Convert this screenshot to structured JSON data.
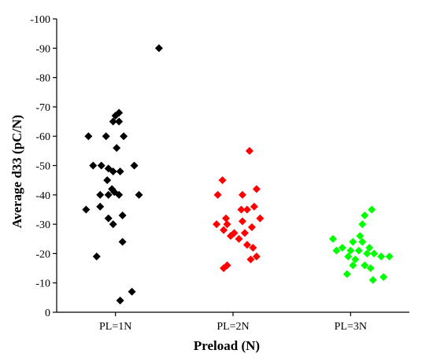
{
  "chart_data": {
    "type": "scatter",
    "xlabel": "Preload (N)",
    "ylabel": "Average d33 (pC/N)",
    "categories": [
      "PL=1N",
      "PL=2N",
      "PL=3N"
    ],
    "ylim": [
      0,
      -100
    ],
    "yticks": [
      0,
      -10,
      -20,
      -30,
      -40,
      -50,
      -60,
      -70,
      -80,
      -90,
      -100
    ],
    "ytick_labels": [
      "0",
      "-10",
      "-20",
      "-30",
      "-40",
      "-50",
      "-60",
      "-70",
      "-80",
      "-90",
      "-100"
    ],
    "grid": false,
    "marker": "diamond",
    "series": [
      {
        "category": "PL=1N",
        "color": "#000000",
        "points": [
          {
            "x": 1.37,
            "y": -90
          },
          {
            "x": 1.03,
            "y": -68
          },
          {
            "x": 1.0,
            "y": -67
          },
          {
            "x": 0.98,
            "y": -65
          },
          {
            "x": 1.03,
            "y": -65
          },
          {
            "x": 0.77,
            "y": -60
          },
          {
            "x": 0.92,
            "y": -60
          },
          {
            "x": 1.07,
            "y": -60
          },
          {
            "x": 1.01,
            "y": -56
          },
          {
            "x": 0.81,
            "y": -50
          },
          {
            "x": 0.88,
            "y": -50
          },
          {
            "x": 0.94,
            "y": -49
          },
          {
            "x": 1.16,
            "y": -50
          },
          {
            "x": 0.98,
            "y": -48
          },
          {
            "x": 1.04,
            "y": -48
          },
          {
            "x": 0.93,
            "y": -45
          },
          {
            "x": 0.97,
            "y": -42
          },
          {
            "x": 0.87,
            "y": -40
          },
          {
            "x": 0.94,
            "y": -40
          },
          {
            "x": 0.99,
            "y": -41
          },
          {
            "x": 1.03,
            "y": -40
          },
          {
            "x": 1.2,
            "y": -40
          },
          {
            "x": 0.75,
            "y": -35
          },
          {
            "x": 0.87,
            "y": -36
          },
          {
            "x": 1.06,
            "y": -33
          },
          {
            "x": 0.94,
            "y": -32
          },
          {
            "x": 0.98,
            "y": -30
          },
          {
            "x": 1.06,
            "y": -24
          },
          {
            "x": 0.84,
            "y": -19
          },
          {
            "x": 1.14,
            "y": -7
          },
          {
            "x": 1.04,
            "y": -4
          }
        ]
      },
      {
        "category": "PL=2N",
        "color": "#ff0000",
        "points": [
          {
            "x": 2.14,
            "y": -55
          },
          {
            "x": 1.91,
            "y": -45
          },
          {
            "x": 2.2,
            "y": -42
          },
          {
            "x": 1.87,
            "y": -40
          },
          {
            "x": 2.08,
            "y": -40
          },
          {
            "x": 2.18,
            "y": -36
          },
          {
            "x": 2.07,
            "y": -35
          },
          {
            "x": 2.12,
            "y": -35
          },
          {
            "x": 1.94,
            "y": -32
          },
          {
            "x": 2.23,
            "y": -32
          },
          {
            "x": 1.86,
            "y": -30
          },
          {
            "x": 1.95,
            "y": -30
          },
          {
            "x": 2.08,
            "y": -31
          },
          {
            "x": 2.16,
            "y": -29
          },
          {
            "x": 1.92,
            "y": -28
          },
          {
            "x": 2.01,
            "y": -27
          },
          {
            "x": 2.1,
            "y": -27
          },
          {
            "x": 1.98,
            "y": -26
          },
          {
            "x": 2.05,
            "y": -25
          },
          {
            "x": 2.12,
            "y": -23
          },
          {
            "x": 2.17,
            "y": -22
          },
          {
            "x": 2.2,
            "y": -19
          },
          {
            "x": 2.15,
            "y": -18
          },
          {
            "x": 1.95,
            "y": -16
          },
          {
            "x": 1.92,
            "y": -15
          }
        ]
      },
      {
        "category": "PL=3N",
        "color": "#00ff00",
        "points": [
          {
            "x": 3.18,
            "y": -35
          },
          {
            "x": 3.12,
            "y": -33
          },
          {
            "x": 3.1,
            "y": -30
          },
          {
            "x": 3.08,
            "y": -26
          },
          {
            "x": 2.85,
            "y": -25
          },
          {
            "x": 3.02,
            "y": -24
          },
          {
            "x": 3.1,
            "y": -24
          },
          {
            "x": 2.93,
            "y": -22
          },
          {
            "x": 3.16,
            "y": -22
          },
          {
            "x": 2.88,
            "y": -21
          },
          {
            "x": 3.0,
            "y": -21
          },
          {
            "x": 3.07,
            "y": -21
          },
          {
            "x": 3.14,
            "y": -20
          },
          {
            "x": 3.2,
            "y": -20
          },
          {
            "x": 2.98,
            "y": -19
          },
          {
            "x": 3.26,
            "y": -19
          },
          {
            "x": 3.33,
            "y": -19
          },
          {
            "x": 3.04,
            "y": -18
          },
          {
            "x": 3.02,
            "y": -16
          },
          {
            "x": 3.12,
            "y": -16
          },
          {
            "x": 3.17,
            "y": -15
          },
          {
            "x": 2.97,
            "y": -13
          },
          {
            "x": 3.28,
            "y": -12
          },
          {
            "x": 3.19,
            "y": -11
          }
        ]
      }
    ]
  }
}
